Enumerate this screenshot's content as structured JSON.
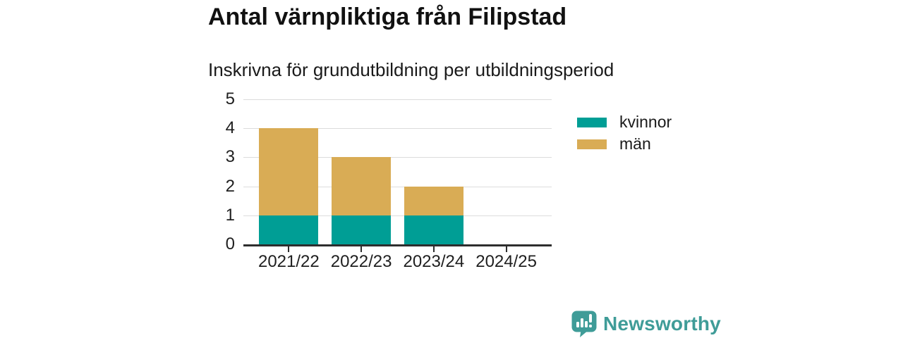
{
  "header": {
    "title": "Antal värnpliktiga från Filipstad",
    "subtitle": "Inskrivna för grundutbildning per utbildningsperiod"
  },
  "chart_data": {
    "type": "bar",
    "stacked": true,
    "title": "Antal värnpliktiga från Filipstad",
    "subtitle": "Inskrivna för grundutbildning per utbildningsperiod",
    "categories": [
      "2021/22",
      "2022/23",
      "2023/24",
      "2024/25"
    ],
    "series": [
      {
        "name": "kvinnor",
        "color": "#009e95",
        "values": [
          1,
          1,
          1,
          0
        ]
      },
      {
        "name": "män",
        "color": "#d9ac55",
        "values": [
          3,
          2,
          1,
          0
        ]
      }
    ],
    "totals": [
      4,
      3,
      2,
      0
    ],
    "xlabel": "",
    "ylabel": "",
    "ylim": [
      0,
      5
    ],
    "yticks": [
      0,
      1,
      2,
      3,
      4,
      5
    ],
    "grid": true,
    "legend_position": "right-top"
  },
  "footer": {
    "brand": "Newsworthy",
    "brand_color": "#3f9c98",
    "brand_icon": "newsworthy-speech-bubble-chart-icon"
  },
  "style": {
    "grid_color": "#dcdcdc",
    "axis_color": "#2e2e2e",
    "text_color": "#1a1a1a",
    "background": "#ffffff"
  }
}
